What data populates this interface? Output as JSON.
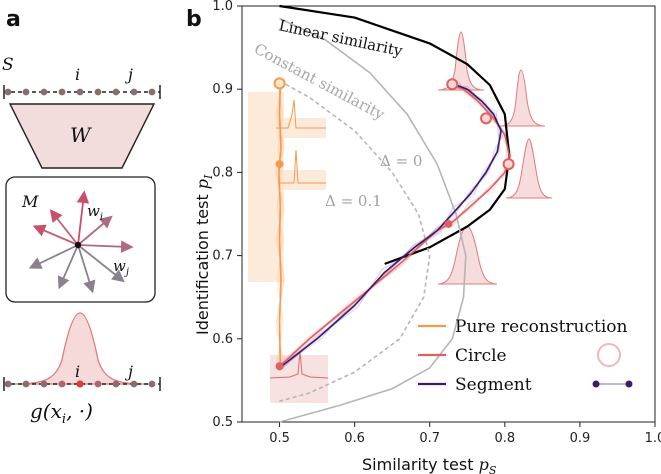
{
  "figure": {
    "panel_a_label": "a",
    "panel_b_label": "b"
  },
  "panel_a": {
    "set_label": "S",
    "index_i": "i",
    "index_j": "j",
    "weights_label": "W",
    "matrix_label": "M",
    "vector_wi": "w",
    "vector_wi_sub": "i",
    "vector_wj": "w",
    "vector_wj_sub": "j",
    "bottom_index_i": "i",
    "bottom_index_j": "j",
    "func_label": "g(x",
    "func_sub": "i",
    "func_tail": ", ·)"
  },
  "chart_data": {
    "type": "line",
    "title": "",
    "xlabel": "Similarity test",
    "xlabel_var": "p",
    "xlabel_sub": "S",
    "ylabel": "Identification test",
    "ylabel_var": "p",
    "ylabel_sub": "I",
    "xlim": [
      0.45,
      1.0
    ],
    "ylim": [
      0.5,
      1.0
    ],
    "x_ticks": [
      0.5,
      0.6,
      0.7,
      0.8,
      0.9,
      1.0
    ],
    "x_tick_labels": [
      "0.5",
      "0.6",
      "0.7",
      "0.8",
      "0.9",
      "1.0"
    ],
    "y_ticks": [
      0.5,
      0.6,
      0.7,
      0.8,
      0.9,
      1.0
    ],
    "y_tick_labels": [
      "0.5",
      "0.6",
      "0.7",
      "0.8",
      "0.9",
      "1.0"
    ],
    "curve_labels": {
      "linear": "Linear similarity",
      "constant": "Constant similarity",
      "delta0": "Δ = 0",
      "delta01": "Δ = 0.1"
    },
    "series": [
      {
        "name": "Linear similarity",
        "color": "#000000",
        "style": "solid",
        "x": [
          0.5,
          0.6,
          0.7,
          0.75,
          0.78,
          0.8,
          0.806,
          0.8,
          0.78,
          0.75,
          0.7,
          0.64
        ],
        "y": [
          1.0,
          0.986,
          0.955,
          0.93,
          0.905,
          0.87,
          0.82,
          0.78,
          0.755,
          0.735,
          0.71,
          0.69
        ]
      },
      {
        "name": "Constant similarity",
        "color": "#b5b5b5",
        "style": "solid",
        "x": [
          0.5,
          0.56,
          0.62,
          0.67,
          0.71,
          0.735,
          0.748,
          0.745,
          0.73,
          0.7,
          0.65,
          0.58,
          0.5
        ],
        "y": [
          0.985,
          0.96,
          0.92,
          0.87,
          0.81,
          0.75,
          0.7,
          0.65,
          0.6,
          0.565,
          0.54,
          0.52,
          0.5
        ]
      },
      {
        "name": "Δ = 0.1",
        "color": "#b5b5b5",
        "style": "dashed",
        "x": [
          0.5,
          0.54,
          0.6,
          0.65,
          0.685,
          0.7,
          0.692,
          0.66,
          0.6,
          0.54,
          0.5
        ],
        "y": [
          0.91,
          0.89,
          0.85,
          0.8,
          0.75,
          0.7,
          0.65,
          0.6,
          0.56,
          0.535,
          0.525
        ]
      },
      {
        "name": "Pure reconstruction",
        "color": "#f39a4c",
        "style": "solid",
        "x": [
          0.501,
          0.5,
          0.502,
          0.499,
          0.501,
          0.5,
          0.502,
          0.5,
          0.501
        ],
        "y": [
          0.91,
          0.87,
          0.83,
          0.8,
          0.76,
          0.72,
          0.67,
          0.62,
          0.57
        ]
      },
      {
        "name": "Circle",
        "color": "#e06060",
        "style": "solid",
        "x": [
          0.5,
          0.54,
          0.6,
          0.66,
          0.71,
          0.73,
          0.755,
          0.78,
          0.8,
          0.806,
          0.8,
          0.785,
          0.765,
          0.745,
          0.73
        ],
        "y": [
          0.567,
          0.6,
          0.645,
          0.69,
          0.73,
          0.74,
          0.76,
          0.78,
          0.8,
          0.82,
          0.845,
          0.865,
          0.885,
          0.9,
          0.905
        ]
      },
      {
        "name": "Segment",
        "color": "#3d1a6e",
        "style": "solid",
        "x": [
          0.5,
          0.55,
          0.6,
          0.64,
          0.68,
          0.71,
          0.735,
          0.755,
          0.775,
          0.79,
          0.795,
          0.785,
          0.77,
          0.75,
          0.735
        ],
        "y": [
          0.565,
          0.6,
          0.64,
          0.68,
          0.71,
          0.73,
          0.755,
          0.775,
          0.8,
          0.825,
          0.85,
          0.87,
          0.885,
          0.9,
          0.905
        ]
      }
    ],
    "points": [
      {
        "label": "Pure reconstruction end",
        "x": 0.5,
        "y": 0.907,
        "hollow": true,
        "color": "#f39a4c"
      },
      {
        "label": "Pure reconstruction mid",
        "x": 0.5,
        "y": 0.81,
        "hollow": false,
        "color": "#f39a4c"
      },
      {
        "label": "Circle low",
        "x": 0.5,
        "y": 0.567,
        "hollow": false,
        "color": "#e06060"
      },
      {
        "label": "Circle mid",
        "x": 0.725,
        "y": 0.738,
        "hollow": false,
        "color": "#e06060"
      },
      {
        "label": "Circle high 1",
        "x": 0.805,
        "y": 0.81,
        "hollow": true,
        "color": "#e06060"
      },
      {
        "label": "Circle high 2",
        "x": 0.775,
        "y": 0.865,
        "hollow": true,
        "color": "#e06060"
      },
      {
        "label": "Circle high 3",
        "x": 0.73,
        "y": 0.906,
        "hollow": true,
        "color": "#e06060"
      }
    ],
    "legend": [
      {
        "label": "Pure reconstruction",
        "color": "#f39a4c"
      },
      {
        "label": "Circle",
        "color": "#e06060"
      },
      {
        "label": "Segment",
        "color": "#3d1a6e"
      }
    ],
    "legend_position": "bottom-right"
  }
}
